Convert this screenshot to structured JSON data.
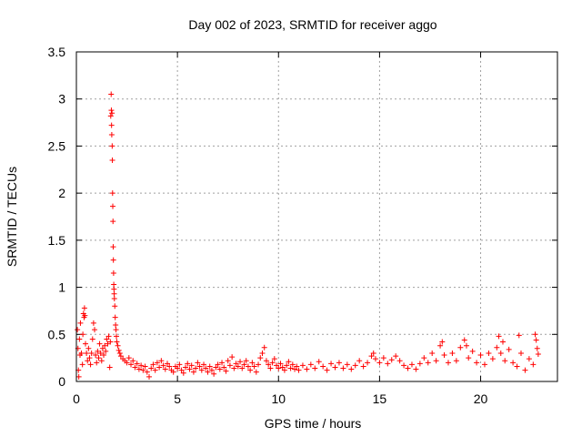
{
  "chart_data": {
    "type": "scatter",
    "title": "Day 002 of 2023, SRMTID for receiver aggo",
    "xlabel": "GPS time / hours",
    "ylabel": "SRMTID / TECUs",
    "xlim": [
      0,
      23.8
    ],
    "ylim": [
      0,
      3.5
    ],
    "xticks": [
      0,
      5,
      10,
      15,
      20
    ],
    "xtick_labels": [
      "0",
      "5",
      "10",
      "15",
      "20"
    ],
    "yticks": [
      0,
      0.5,
      1,
      1.5,
      2,
      2.5,
      3,
      3.5
    ],
    "ytick_labels": [
      "0",
      "0.5",
      "1",
      "1.5",
      "2",
      "2.5",
      "3",
      "3.5"
    ],
    "grid": true,
    "marker": "+",
    "series_color": "#ff0000",
    "series": [
      {
        "name": "SRMTID",
        "points": [
          [
            0.05,
            0.55
          ],
          [
            0.08,
            0.35
          ],
          [
            0.1,
            0.12
          ],
          [
            0.12,
            0.05
          ],
          [
            0.15,
            0.45
          ],
          [
            0.18,
            0.28
          ],
          [
            0.2,
            0.62
          ],
          [
            0.25,
            0.3
          ],
          [
            0.3,
            0.18
          ],
          [
            0.32,
            0.5
          ],
          [
            0.35,
            0.72
          ],
          [
            0.38,
            0.68
          ],
          [
            0.4,
            0.78
          ],
          [
            0.42,
            0.7
          ],
          [
            0.45,
            0.4
          ],
          [
            0.5,
            0.3
          ],
          [
            0.55,
            0.22
          ],
          [
            0.6,
            0.35
          ],
          [
            0.65,
            0.25
          ],
          [
            0.7,
            0.18
          ],
          [
            0.75,
            0.3
          ],
          [
            0.8,
            0.45
          ],
          [
            0.85,
            0.62
          ],
          [
            0.9,
            0.55
          ],
          [
            0.95,
            0.28
          ],
          [
            1.0,
            0.2
          ],
          [
            1.05,
            0.32
          ],
          [
            1.1,
            0.25
          ],
          [
            1.15,
            0.4
          ],
          [
            1.2,
            0.3
          ],
          [
            1.25,
            0.22
          ],
          [
            1.3,
            0.35
          ],
          [
            1.35,
            0.28
          ],
          [
            1.4,
            0.38
          ],
          [
            1.45,
            0.32
          ],
          [
            1.5,
            0.45
          ],
          [
            1.55,
            0.4
          ],
          [
            1.6,
            0.48
          ],
          [
            1.65,
            0.15
          ],
          [
            1.68,
            0.42
          ],
          [
            1.7,
            2.82
          ],
          [
            1.72,
            3.05
          ],
          [
            1.73,
            2.88
          ],
          [
            1.74,
            2.72
          ],
          [
            1.75,
            2.62
          ],
          [
            1.76,
            2.85
          ],
          [
            1.77,
            2.5
          ],
          [
            1.78,
            2.35
          ],
          [
            1.79,
            2.0
          ],
          [
            1.8,
            1.86
          ],
          [
            1.81,
            1.7
          ],
          [
            1.82,
            1.43
          ],
          [
            1.83,
            1.29
          ],
          [
            1.84,
            1.15
          ],
          [
            1.85,
            1.03
          ],
          [
            1.86,
            0.98
          ],
          [
            1.87,
            0.93
          ],
          [
            1.88,
            0.88
          ],
          [
            1.9,
            0.8
          ],
          [
            1.92,
            0.68
          ],
          [
            1.94,
            0.6
          ],
          [
            1.96,
            0.55
          ],
          [
            1.98,
            0.48
          ],
          [
            2.0,
            0.42
          ],
          [
            2.05,
            0.38
          ],
          [
            2.1,
            0.33
          ],
          [
            2.15,
            0.3
          ],
          [
            2.2,
            0.27
          ],
          [
            2.3,
            0.24
          ],
          [
            2.4,
            0.22
          ],
          [
            2.5,
            0.2
          ],
          [
            2.6,
            0.25
          ],
          [
            2.7,
            0.18
          ],
          [
            2.8,
            0.22
          ],
          [
            2.9,
            0.15
          ],
          [
            3.0,
            0.19
          ],
          [
            3.1,
            0.13
          ],
          [
            3.2,
            0.17
          ],
          [
            3.3,
            0.12
          ],
          [
            3.4,
            0.16
          ],
          [
            3.5,
            0.1
          ],
          [
            3.6,
            0.05
          ],
          [
            3.7,
            0.14
          ],
          [
            3.8,
            0.18
          ],
          [
            3.9,
            0.12
          ],
          [
            4.0,
            0.2
          ],
          [
            4.1,
            0.15
          ],
          [
            4.2,
            0.22
          ],
          [
            4.3,
            0.17
          ],
          [
            4.4,
            0.13
          ],
          [
            4.5,
            0.19
          ],
          [
            4.6,
            0.16
          ],
          [
            4.7,
            0.12
          ],
          [
            4.8,
            0.1
          ],
          [
            4.9,
            0.16
          ],
          [
            5.0,
            0.14
          ],
          [
            5.1,
            0.18
          ],
          [
            5.2,
            0.12
          ],
          [
            5.3,
            0.09
          ],
          [
            5.4,
            0.15
          ],
          [
            5.5,
            0.19
          ],
          [
            5.6,
            0.13
          ],
          [
            5.7,
            0.17
          ],
          [
            5.8,
            0.1
          ],
          [
            5.9,
            0.14
          ],
          [
            6.0,
            0.2
          ],
          [
            6.1,
            0.16
          ],
          [
            6.2,
            0.12
          ],
          [
            6.3,
            0.18
          ],
          [
            6.4,
            0.14
          ],
          [
            6.5,
            0.1
          ],
          [
            6.6,
            0.16
          ],
          [
            6.7,
            0.12
          ],
          [
            6.8,
            0.08
          ],
          [
            6.9,
            0.15
          ],
          [
            7.0,
            0.18
          ],
          [
            7.1,
            0.13
          ],
          [
            7.2,
            0.2
          ],
          [
            7.3,
            0.15
          ],
          [
            7.4,
            0.11
          ],
          [
            7.5,
            0.22
          ],
          [
            7.6,
            0.17
          ],
          [
            7.7,
            0.26
          ],
          [
            7.8,
            0.14
          ],
          [
            7.9,
            0.19
          ],
          [
            8.0,
            0.16
          ],
          [
            8.1,
            0.21
          ],
          [
            8.2,
            0.14
          ],
          [
            8.3,
            0.18
          ],
          [
            8.4,
            0.22
          ],
          [
            8.5,
            0.16
          ],
          [
            8.6,
            0.12
          ],
          [
            8.7,
            0.2
          ],
          [
            8.8,
            0.16
          ],
          [
            8.9,
            0.1
          ],
          [
            9.0,
            0.18
          ],
          [
            9.1,
            0.25
          ],
          [
            9.2,
            0.3
          ],
          [
            9.3,
            0.36
          ],
          [
            9.4,
            0.22
          ],
          [
            9.5,
            0.18
          ],
          [
            9.6,
            0.14
          ],
          [
            9.7,
            0.2
          ],
          [
            9.8,
            0.24
          ],
          [
            9.9,
            0.17
          ],
          [
            10.0,
            0.14
          ],
          [
            10.1,
            0.19
          ],
          [
            10.2,
            0.15
          ],
          [
            10.3,
            0.12
          ],
          [
            10.4,
            0.17
          ],
          [
            10.5,
            0.21
          ],
          [
            10.6,
            0.14
          ],
          [
            10.7,
            0.18
          ],
          [
            10.8,
            0.13
          ],
          [
            10.9,
            0.16
          ],
          [
            11.0,
            0.12
          ],
          [
            11.2,
            0.17
          ],
          [
            11.4,
            0.13
          ],
          [
            11.6,
            0.18
          ],
          [
            11.8,
            0.14
          ],
          [
            12.0,
            0.21
          ],
          [
            12.2,
            0.16
          ],
          [
            12.4,
            0.12
          ],
          [
            12.6,
            0.19
          ],
          [
            12.8,
            0.15
          ],
          [
            13.0,
            0.2
          ],
          [
            13.2,
            0.14
          ],
          [
            13.4,
            0.18
          ],
          [
            13.6,
            0.13
          ],
          [
            13.8,
            0.17
          ],
          [
            14.0,
            0.22
          ],
          [
            14.2,
            0.16
          ],
          [
            14.4,
            0.2
          ],
          [
            14.6,
            0.27
          ],
          [
            14.7,
            0.3
          ],
          [
            14.8,
            0.24
          ],
          [
            15.0,
            0.2
          ],
          [
            15.2,
            0.25
          ],
          [
            15.4,
            0.19
          ],
          [
            15.6,
            0.23
          ],
          [
            15.8,
            0.27
          ],
          [
            16.0,
            0.22
          ],
          [
            16.2,
            0.17
          ],
          [
            16.4,
            0.14
          ],
          [
            16.6,
            0.18
          ],
          [
            16.8,
            0.13
          ],
          [
            17.0,
            0.19
          ],
          [
            17.2,
            0.25
          ],
          [
            17.4,
            0.2
          ],
          [
            17.6,
            0.3
          ],
          [
            17.8,
            0.22
          ],
          [
            18.0,
            0.38
          ],
          [
            18.1,
            0.42
          ],
          [
            18.2,
            0.28
          ],
          [
            18.4,
            0.2
          ],
          [
            18.6,
            0.3
          ],
          [
            18.8,
            0.22
          ],
          [
            19.0,
            0.36
          ],
          [
            19.2,
            0.44
          ],
          [
            19.3,
            0.38
          ],
          [
            19.4,
            0.25
          ],
          [
            19.6,
            0.32
          ],
          [
            19.8,
            0.2
          ],
          [
            20.0,
            0.28
          ],
          [
            20.2,
            0.18
          ],
          [
            20.4,
            0.3
          ],
          [
            20.6,
            0.24
          ],
          [
            20.8,
            0.36
          ],
          [
            20.9,
            0.48
          ],
          [
            21.0,
            0.3
          ],
          [
            21.1,
            0.42
          ],
          [
            21.2,
            0.22
          ],
          [
            21.4,
            0.34
          ],
          [
            21.6,
            0.2
          ],
          [
            21.8,
            0.16
          ],
          [
            21.9,
            0.49
          ],
          [
            22.0,
            0.3
          ],
          [
            22.2,
            0.12
          ],
          [
            22.4,
            0.24
          ],
          [
            22.6,
            0.18
          ],
          [
            22.7,
            0.5
          ],
          [
            22.75,
            0.44
          ],
          [
            22.8,
            0.35
          ],
          [
            22.85,
            0.29
          ]
        ]
      }
    ]
  }
}
